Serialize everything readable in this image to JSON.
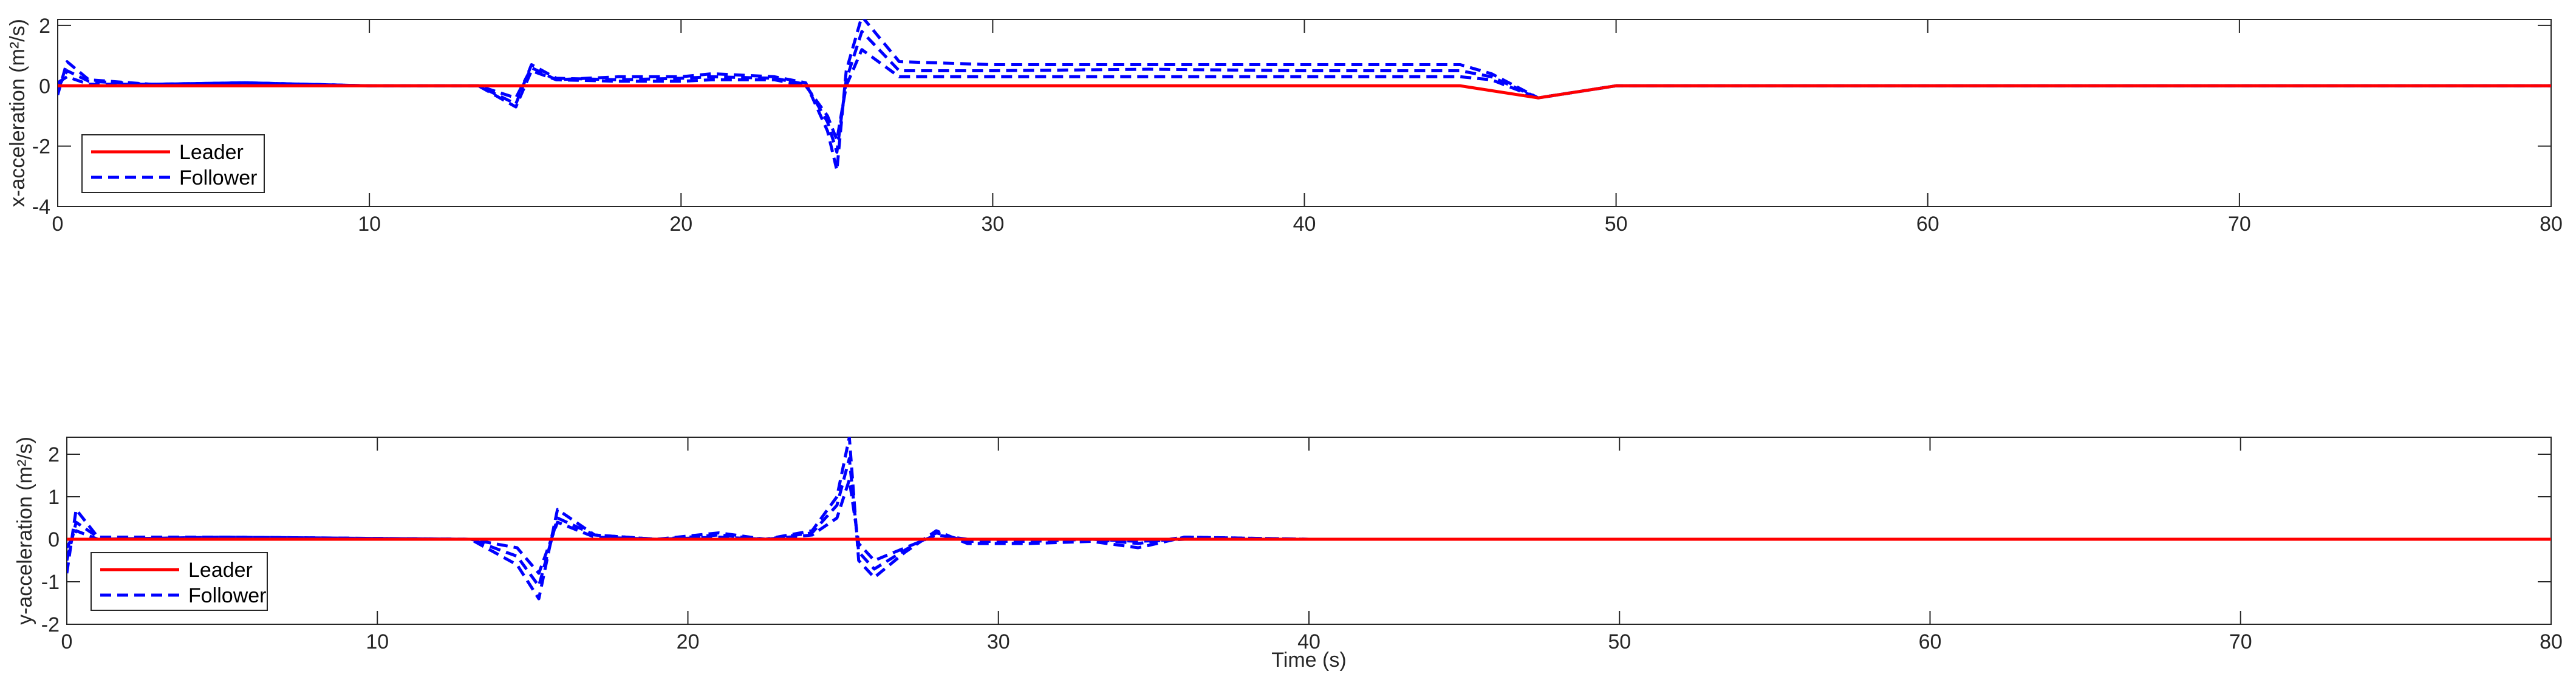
{
  "colors": {
    "leader": "#ff0000",
    "follower": "#0000ff",
    "axes": "#262626"
  },
  "chart_data": [
    {
      "type": "line",
      "title": "",
      "xlabel": "",
      "ylabel": "x-acceleration (m²/s)",
      "xlim": [
        0,
        80
      ],
      "ylim": [
        -4,
        2.2
      ],
      "xticks": [
        0,
        10,
        20,
        30,
        40,
        50,
        60,
        70,
        80
      ],
      "yticks": [
        -4,
        -2,
        0,
        2
      ],
      "grid": false,
      "legend_position": "bottom-left",
      "series": [
        {
          "name": "Leader",
          "color": "#ff0000",
          "style": "solid",
          "x": [
            0,
            45,
            47.5,
            50,
            80
          ],
          "y": [
            0,
            0,
            -0.4,
            0,
            0
          ]
        },
        {
          "name": "Follower",
          "color": "#0000ff",
          "style": "dashed",
          "x": [
            0,
            0.3,
            1,
            3,
            6,
            10,
            13.5,
            14.7,
            15.2,
            16,
            18,
            20,
            21,
            23,
            24,
            24.7,
            25,
            25.3,
            25.8,
            27,
            30,
            35,
            40,
            45,
            46,
            47.5,
            50,
            80
          ],
          "y": [
            -0.3,
            0.8,
            0.2,
            0.05,
            0.1,
            0.0,
            0.0,
            -0.4,
            0.6,
            0.2,
            0.3,
            0.3,
            0.4,
            0.3,
            0.1,
            -1.5,
            -2.8,
            0.5,
            2.3,
            0.8,
            0.7,
            0.7,
            0.7,
            0.7,
            0.4,
            -0.4,
            0,
            0
          ]
        },
        {
          "name": "",
          "color": "#0000ff",
          "style": "dashed",
          "x": [
            0,
            0.3,
            1,
            3,
            6,
            10,
            13.5,
            14.7,
            15.2,
            16,
            18,
            20,
            21,
            23,
            24,
            24.7,
            25,
            25.3,
            25.8,
            27,
            30,
            35,
            40,
            45,
            46,
            47.5,
            50,
            80
          ],
          "y": [
            -0.1,
            0.5,
            0.15,
            0.05,
            0.1,
            0.0,
            0.0,
            -0.6,
            0.7,
            0.25,
            0.2,
            0.25,
            0.3,
            0.25,
            0.05,
            -1.2,
            -2.2,
            0.2,
            1.8,
            0.5,
            0.5,
            0.55,
            0.5,
            0.5,
            0.3,
            -0.4,
            0,
            0
          ]
        },
        {
          "name": "",
          "color": "#0000ff",
          "style": "dashed",
          "x": [
            0,
            0.3,
            1,
            3,
            6,
            10,
            13.5,
            14.7,
            15.2,
            16,
            18,
            20,
            21,
            23,
            24,
            24.7,
            25,
            25.3,
            25.8,
            27,
            30,
            35,
            40,
            45,
            46,
            47.5,
            50,
            80
          ],
          "y": [
            0.1,
            0.3,
            0.05,
            0.05,
            0.1,
            0.0,
            0.0,
            -0.7,
            0.5,
            0.2,
            0.15,
            0.15,
            0.2,
            0.2,
            0.0,
            -1.0,
            -1.8,
            0.0,
            1.2,
            0.3,
            0.3,
            0.3,
            0.3,
            0.3,
            0.2,
            -0.4,
            0,
            0
          ]
        }
      ]
    },
    {
      "type": "line",
      "title": "",
      "xlabel": "Time (s)",
      "ylabel": "y-acceleration (m²/s)",
      "xlim": [
        0,
        80
      ],
      "ylim": [
        -2,
        2.4
      ],
      "xticks": [
        0,
        10,
        20,
        30,
        40,
        50,
        60,
        70,
        80
      ],
      "yticks": [
        -2,
        -1,
        0,
        1,
        2
      ],
      "grid": false,
      "legend_position": "bottom-left",
      "series": [
        {
          "name": "Leader",
          "color": "#ff0000",
          "style": "solid",
          "x": [
            0,
            80
          ],
          "y": [
            0,
            0
          ]
        },
        {
          "name": "Follower",
          "color": "#0000ff",
          "style": "dashed",
          "x": [
            0,
            0.3,
            1,
            5,
            13,
            14.5,
            15.2,
            15.8,
            17,
            19,
            21,
            22.5,
            24,
            24.8,
            25.2,
            25.5,
            26,
            27,
            28,
            29,
            31,
            33,
            34.5,
            36,
            40,
            80
          ],
          "y": [
            -0.8,
            0.7,
            0.05,
            0.05,
            0.0,
            -0.6,
            -1.4,
            0.7,
            0.1,
            0.0,
            0.15,
            0.0,
            0.2,
            1.0,
            2.4,
            -0.5,
            -0.9,
            -0.3,
            0.2,
            -0.1,
            -0.1,
            -0.05,
            -0.2,
            0.05,
            0.0,
            0.0
          ]
        },
        {
          "name": "",
          "color": "#0000ff",
          "style": "dashed",
          "x": [
            0,
            0.3,
            1,
            5,
            13,
            14.5,
            15.2,
            15.8,
            17,
            19,
            21,
            22.5,
            24,
            24.8,
            25.2,
            25.5,
            26,
            27,
            28,
            29,
            31,
            33,
            34.5,
            36,
            40,
            80
          ],
          "y": [
            -0.5,
            0.4,
            0.05,
            0.05,
            0.0,
            -0.4,
            -1.1,
            0.5,
            0.1,
            0.0,
            0.1,
            0.0,
            0.15,
            0.8,
            1.9,
            -0.3,
            -0.7,
            -0.25,
            0.15,
            -0.05,
            -0.05,
            0.0,
            -0.1,
            0.05,
            0.0,
            0.0
          ]
        },
        {
          "name": "",
          "color": "#0000ff",
          "style": "dashed",
          "x": [
            0,
            0.3,
            1,
            5,
            13,
            14.5,
            15.2,
            15.8,
            17,
            19,
            21,
            22.5,
            24,
            24.8,
            25.2,
            25.5,
            26,
            27,
            28,
            29,
            31,
            33,
            34.5,
            36,
            40,
            80
          ],
          "y": [
            -0.2,
            0.2,
            0.0,
            0.05,
            0.0,
            -0.2,
            -0.8,
            0.4,
            0.05,
            0.0,
            0.05,
            0.0,
            0.1,
            0.5,
            1.4,
            -0.1,
            -0.5,
            -0.2,
            0.1,
            0.0,
            0.0,
            0.0,
            -0.05,
            0.0,
            0.0,
            0.0
          ]
        }
      ]
    }
  ]
}
